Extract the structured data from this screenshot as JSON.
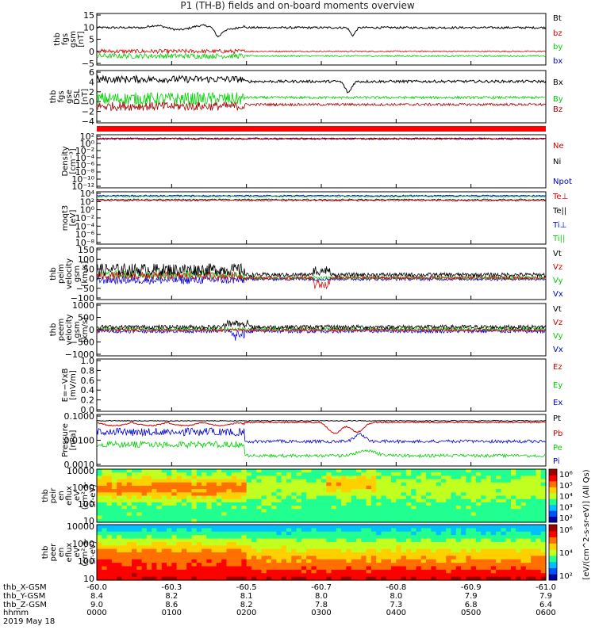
{
  "title": "P1 (TH-B) fields and on-board moments overview",
  "footer": {
    "rows": [
      {
        "label": "thb_X-GSM",
        "values": [
          "-60.0",
          "-60.3",
          "-60.5",
          "-60.7",
          "-60.8",
          "-60.9",
          "-61.0"
        ]
      },
      {
        "label": "thb_Y-GSM",
        "values": [
          "8.4",
          "8.2",
          "8.1",
          "8.0",
          "8.0",
          "7.9",
          "7.9"
        ]
      },
      {
        "label": "thb_Z-GSM",
        "values": [
          "9.0",
          "8.6",
          "8.2",
          "7.8",
          "7.3",
          "6.8",
          "6.4"
        ]
      },
      {
        "label": "hhmm",
        "values": [
          "0000",
          "0100",
          "0200",
          "0300",
          "0400",
          "0500",
          "0600"
        ]
      }
    ],
    "date": "2019 May 18"
  },
  "colorbar": {
    "label": "[eV/(cm^2-s-sr-eV)] (All Qs)",
    "ticks_top": [
      "10⁶",
      "10⁵",
      "10⁴",
      "10³",
      "10²"
    ],
    "ticks_bottom": [
      "10⁶",
      "10⁴",
      "10²"
    ],
    "colors": [
      "#0000a0",
      "#0050ff",
      "#00c0ff",
      "#20ff90",
      "#c0ff20",
      "#ffd000",
      "#ff7000",
      "#ff0000",
      "#a00000"
    ]
  },
  "chart_data": [
    {
      "type": "line",
      "panel": "fgs",
      "ylabel": [
        "thb",
        "fgs",
        "gsm",
        "[nT]"
      ],
      "yticks": [
        "15",
        "10",
        "5",
        "0",
        "−5"
      ],
      "ylim": [
        -5,
        15
      ],
      "series": [
        {
          "name": "Bt",
          "color": "#000000",
          "level": 9.5
        },
        {
          "name": "bz",
          "color": "#d00000",
          "level": 0
        },
        {
          "name": "by",
          "color": "#00d000",
          "level": -1.5
        },
        {
          "name": "bx",
          "color": "#0000d0",
          "level": -0.3
        }
      ]
    },
    {
      "type": "line",
      "panel": "fgs-dsl",
      "ylabel": [
        "thb",
        "fgs",
        "gse",
        "DSL",
        "[nT]"
      ],
      "yticks": [
        "6",
        "4",
        "2",
        "0",
        "−2",
        "−4"
      ],
      "ylim": [
        -5,
        7
      ],
      "series": [
        {
          "name": "Bx",
          "color": "#000000",
          "level": 5
        },
        {
          "name": "By",
          "color": "#00d000",
          "level": 1
        },
        {
          "name": "Bz",
          "color": "#a00000",
          "level": -1
        }
      ]
    },
    {
      "type": "line",
      "panel": "density",
      "ylabel": [
        "Density",
        "[cm⁻³]"
      ],
      "yticks": [
        "10²",
        "10⁰",
        "10⁻²",
        "10⁻⁴",
        "10⁻⁶",
        "10⁻⁸",
        "10⁻¹⁰",
        "10⁻¹²"
      ],
      "series": [
        {
          "name": "Ne",
          "color": "#d00000"
        },
        {
          "name": "Ni",
          "color": "#000000"
        },
        {
          "name": "Npot",
          "color": "#0000d0"
        }
      ]
    },
    {
      "type": "line",
      "panel": "temperature",
      "ylabel": [
        "moqt3",
        "[eV]"
      ],
      "yticks": [
        "10⁴",
        "10²",
        "10⁰",
        "10⁻²",
        "10⁻⁴",
        "10⁻⁶",
        "10⁻⁸"
      ],
      "series": [
        {
          "name": "Te⊥",
          "color": "#d00000"
        },
        {
          "name": "Te||",
          "color": "#000000"
        },
        {
          "name": "Ti⊥",
          "color": "#0000d0"
        },
        {
          "name": "Ti||",
          "color": "#00d000"
        }
      ]
    },
    {
      "type": "line",
      "panel": "peim-velocity",
      "ylabel": [
        "thb",
        "peim",
        "velocity",
        "gsm",
        "[km/s]"
      ],
      "yticks": [
        "150",
        "100",
        "50",
        "0",
        "−50",
        "−100"
      ],
      "ylim": [
        -100,
        150
      ],
      "series": [
        {
          "name": "Vt",
          "color": "#000000"
        },
        {
          "name": "Vz",
          "color": "#d00000"
        },
        {
          "name": "Vy",
          "color": "#00d000"
        },
        {
          "name": "Vx",
          "color": "#0000d0"
        }
      ]
    },
    {
      "type": "line",
      "panel": "peem-velocity",
      "ylabel": [
        "thb",
        "peem",
        "velocity",
        "gsm",
        "[km/s]"
      ],
      "yticks": [
        "1000",
        "500",
        "0",
        "−500",
        "−1000"
      ],
      "ylim": [
        -1000,
        1000
      ],
      "series": [
        {
          "name": "Vt",
          "color": "#000000"
        },
        {
          "name": "Vz",
          "color": "#d00000"
        },
        {
          "name": "Vy",
          "color": "#00d000"
        },
        {
          "name": "Vx",
          "color": "#0000d0"
        }
      ]
    },
    {
      "type": "line",
      "panel": "efield",
      "ylabel": [
        "E=−VxB",
        "[mV/m]"
      ],
      "yticks": [
        "1.0",
        "0.8",
        "0.6",
        "0.4",
        "0.2",
        "0.0"
      ],
      "ylim": [
        0,
        1
      ],
      "series": [
        {
          "name": "Ez",
          "color": "#d00000"
        },
        {
          "name": "Ey",
          "color": "#00d000"
        },
        {
          "name": "Ex",
          "color": "#0000d0"
        }
      ]
    },
    {
      "type": "line",
      "panel": "pressure",
      "ylabel": [
        "Pressure",
        "[nPa]"
      ],
      "yticks": [
        "0.1000",
        "0.0100",
        "0.0010"
      ],
      "series": [
        {
          "name": "Pt",
          "color": "#000000"
        },
        {
          "name": "Pb",
          "color": "#d00000"
        },
        {
          "name": "Pe",
          "color": "#00d000"
        },
        {
          "name": "Pi",
          "color": "#0000d0"
        }
      ]
    },
    {
      "type": "heatmap",
      "panel": "peir-spectrogram",
      "ylabel": [
        "thb",
        "peir",
        "en",
        "eflux",
        "eV",
        "(cm²-s-",
        "sr-eV)"
      ],
      "yticks": [
        "10000",
        "1000",
        "100",
        "10"
      ]
    },
    {
      "type": "heatmap",
      "panel": "peer-spectrogram",
      "ylabel": [
        "thb",
        "peer",
        "en",
        "eflux",
        "eV",
        "(cm²-s-",
        "sr-eV)"
      ],
      "yticks": [
        "10000",
        "1000",
        "100",
        "10"
      ]
    }
  ]
}
